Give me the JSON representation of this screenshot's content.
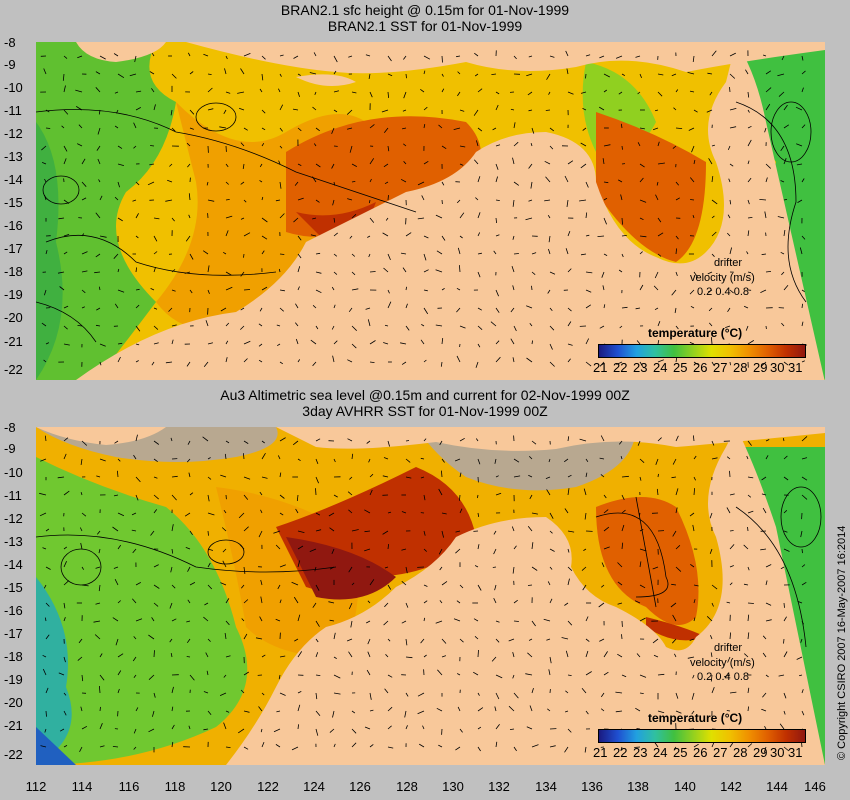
{
  "panels": [
    {
      "title1": "BRAN2.1 sfc height @ 0.15m for 01-Nov-1999",
      "title2": "BRAN2.1 SST for 01-Nov-1999",
      "y_ticks": [
        "-8",
        "-9",
        "-10",
        "-11",
        "-12",
        "-13",
        "-14",
        "-15",
        "-16",
        "-17",
        "-18",
        "-19",
        "-20",
        "-21",
        "-22"
      ],
      "legend_title": "temperature (°C)",
      "legend_ticks": [
        "21",
        "22",
        "23",
        "24",
        "25",
        "26",
        "27",
        "28",
        "29",
        "30",
        "31"
      ],
      "drifter_label": "drifter",
      "velocity_label": "velocity (m/s)",
      "velocity_scale": "0.2 0.4 0.8"
    },
    {
      "title1": "Au3 Altimetric sea level  @0.15m and current for 02-Nov-1999 00Z",
      "title2": "3day AVHRR SST for 01-Nov-1999 00Z",
      "y_ticks": [
        "-8",
        "-9",
        "-10",
        "-11",
        "-12",
        "-13",
        "-14",
        "-15",
        "-16",
        "-17",
        "-18",
        "-19",
        "-20",
        "-21",
        "-22"
      ],
      "legend_title": "temperature (°C)",
      "legend_ticks": [
        "21",
        "22",
        "23",
        "24",
        "25",
        "26",
        "27",
        "28",
        "29",
        "30",
        "31"
      ],
      "drifter_label": "drifter",
      "velocity_label": "velocity (m/s)",
      "velocity_scale": "0.2 0.4 0.8"
    }
  ],
  "x_ticks": [
    "112",
    "114",
    "116",
    "118",
    "120",
    "122",
    "124",
    "126",
    "128",
    "130",
    "132",
    "134",
    "136",
    "138",
    "140",
    "142",
    "144",
    "146"
  ],
  "copyright": "© Copyright CSIRO 2007  16-May-2007 16:2014",
  "colors": {
    "land": "#f8c89a",
    "colorbar": [
      "#1a1a80",
      "#1f4fd0",
      "#21a0e0",
      "#30c0a0",
      "#40c040",
      "#90d020",
      "#e0e000",
      "#f0c000",
      "#f09000",
      "#e06000",
      "#c03000",
      "#901810"
    ]
  }
}
